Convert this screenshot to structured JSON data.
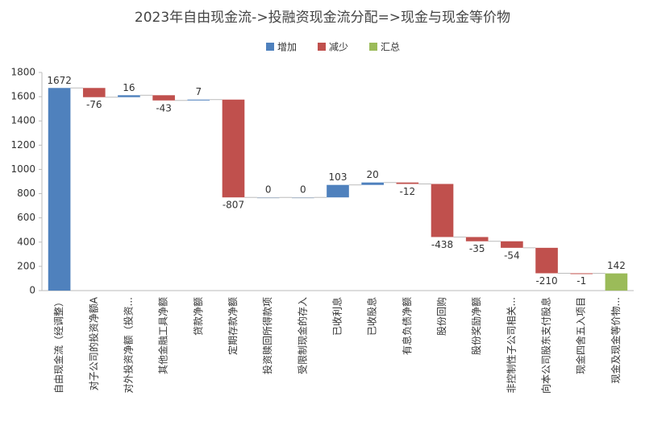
{
  "chart_data": {
    "type": "waterfall",
    "title": "2023年自由现金流->投融资现金流分配=>现金与现金等价物",
    "categories": [
      "自由现金流（经调整）",
      "对子公司的投资净额A",
      "对外投资净额（投资...",
      "其他金融工具净额",
      "贷款净额",
      "定期存款净额",
      "投资赎回所得款项",
      "受限制现金的存入",
      "已收利息",
      "已收股息",
      "有息负债净额",
      "股份回购",
      "股份奖励净额",
      "非控制性子公司相关...",
      "向本公司股东支付股息",
      "现金四舍五入项目",
      "现金及现金等价物..."
    ],
    "series": [
      {
        "name": "增加",
        "color": "#4f81bd",
        "values": [
          1672,
          null,
          16,
          null,
          7,
          null,
          0,
          0,
          103,
          20,
          null,
          null,
          null,
          null,
          null,
          null,
          null
        ]
      },
      {
        "name": "减少",
        "color": "#c0504d",
        "values": [
          null,
          -76,
          null,
          -43,
          null,
          -807,
          null,
          null,
          null,
          null,
          -12,
          -438,
          -35,
          -54,
          -210,
          -1,
          null
        ]
      },
      {
        "name": "汇总",
        "color": "#9bbb59",
        "values": [
          null,
          null,
          null,
          null,
          null,
          null,
          null,
          null,
          null,
          null,
          null,
          null,
          null,
          null,
          null,
          null,
          142
        ]
      }
    ],
    "ylim": [
      0,
      1800
    ],
    "yticks": [
      0,
      200,
      400,
      600,
      800,
      1000,
      1200,
      1400,
      1600,
      1800
    ],
    "legend": "top"
  }
}
